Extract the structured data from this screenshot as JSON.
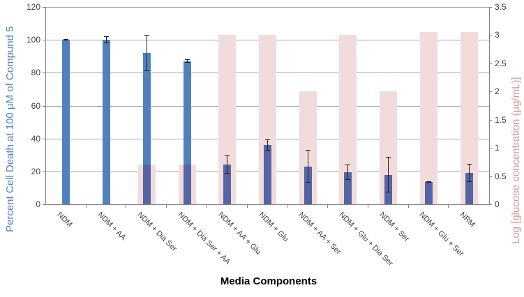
{
  "chart_data": {
    "type": "bar",
    "title": "",
    "xlabel": "Media Components",
    "ylabel_left": "Percent Cell Death at 100 µM of Compund 5",
    "ylabel_right": "Log [glucose concentration (µg/mL)]",
    "categories": [
      "NDM",
      "NDM + AA",
      "NDM + Dia Ser",
      "NDM + Dia Ser + AA",
      "NDM + AA + Glu",
      "NDM + Glu",
      "NDM + AA + Ser",
      "NDM + Glu + Dia Ser",
      "NDM + Ser",
      "NDM + Glu + Ser",
      "NRM"
    ],
    "series": [
      {
        "name": "Percent Cell Death",
        "axis": "left",
        "values": [
          100,
          100,
          92,
          87,
          24,
          36,
          23,
          19.5,
          18,
          13.5,
          19
        ],
        "errors": [
          0.5,
          2,
          11,
          1,
          5.5,
          3.5,
          10,
          4.5,
          11,
          0.5,
          5.5
        ]
      },
      {
        "name": "Log glucose concentration",
        "axis": "right",
        "values": [
          null,
          null,
          0.7,
          0.7,
          3.0,
          3.0,
          2.0,
          3.0,
          2.0,
          3.05,
          3.05
        ]
      }
    ],
    "left_axis": {
      "min": 0,
      "max": 120,
      "step": 20,
      "tick_labels": [
        "0",
        "20",
        "40",
        "60",
        "80",
        "100",
        "120"
      ]
    },
    "right_axis": {
      "min": 0,
      "max": 3.5,
      "step": 0.5,
      "tick_labels": [
        "0",
        "0.5",
        "1",
        "1.5",
        "2",
        "2.5",
        "3",
        "3.5"
      ]
    },
    "grid": true,
    "legend": false
  },
  "colors": {
    "bar_blue": "#4f81bd",
    "bar_pink": "#f2dcdb",
    "bar_overlap": "#5565a4",
    "gridline": "#a6a6a6",
    "axis_line": "#808080",
    "tick_text": "#404040",
    "left_title": "#4f81bd",
    "right_title": "#d99694",
    "error_bar": "#1f1f1f"
  }
}
